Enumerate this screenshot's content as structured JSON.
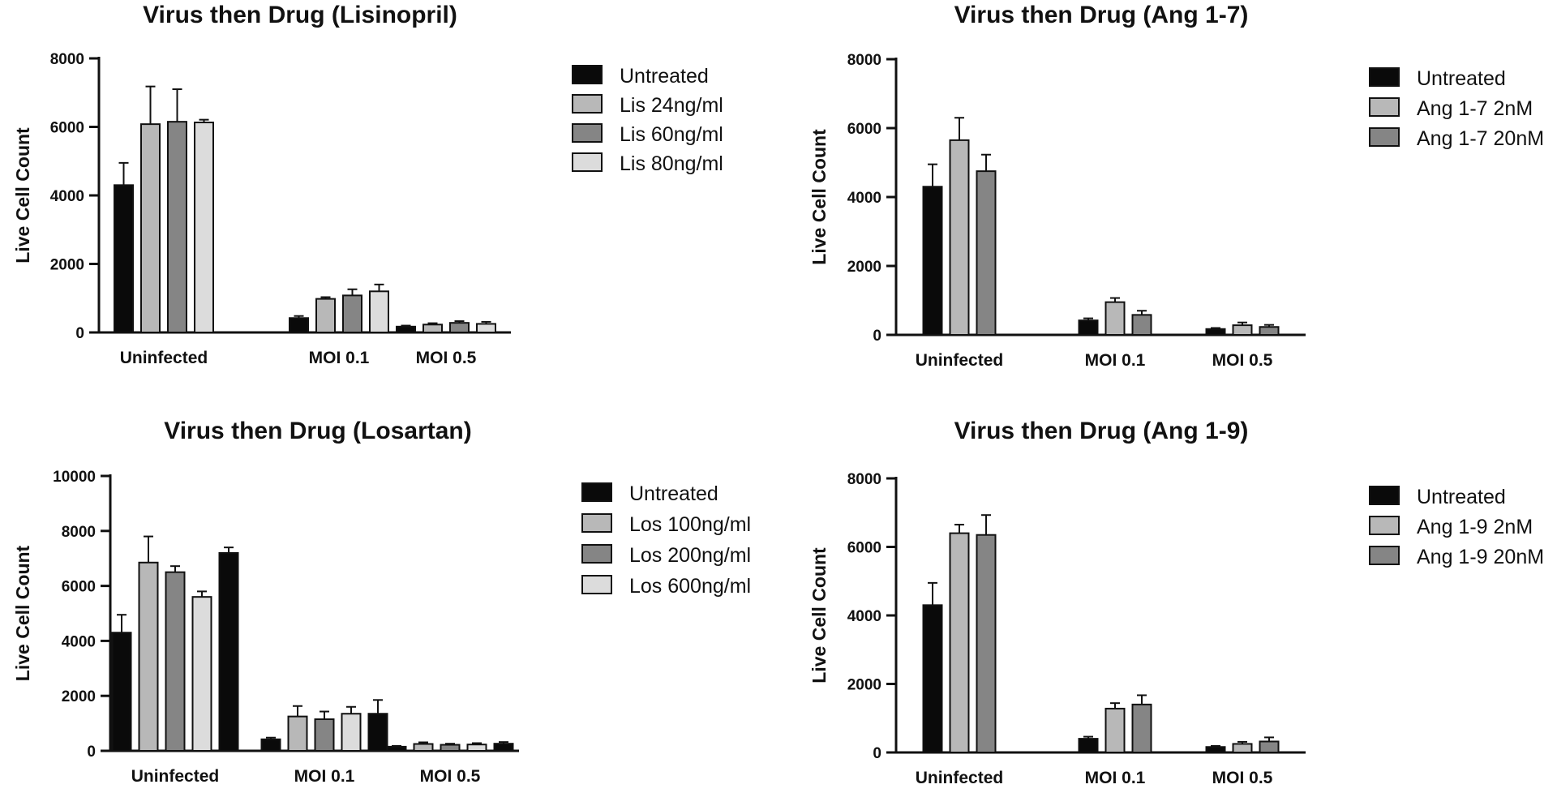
{
  "colors": {
    "untreated": "#0a0a0a",
    "light": "#b8b8b8",
    "mid": "#858585",
    "lightest": "#dcdcdc"
  },
  "chart_data": [
    {
      "type": "bar",
      "title": "Virus then Drug (Lisinopril)",
      "ylabel": "Live Cell Count",
      "ylim": [
        0,
        8000
      ],
      "yticks": [
        0,
        2000,
        4000,
        6000,
        8000
      ],
      "categories": [
        "Uninfected",
        "MOI 0.1",
        "MOI 0.5"
      ],
      "legend_position": "right",
      "series": [
        {
          "name": "Untreated",
          "color": "#0a0a0a",
          "values": [
            4300,
            420,
            170
          ],
          "errors": [
            650,
            60,
            30
          ]
        },
        {
          "name": "Lis 24ng/ml",
          "color": "#b8b8b8",
          "values": [
            6080,
            980,
            230
          ],
          "errors": [
            1100,
            50,
            40
          ]
        },
        {
          "name": "Lis 60ng/ml",
          "color": "#858585",
          "values": [
            6150,
            1080,
            280
          ],
          "errors": [
            950,
            180,
            50
          ]
        },
        {
          "name": "Lis 80ng/ml",
          "color": "#dcdcdc",
          "values": [
            6130,
            1200,
            250
          ],
          "errors": [
            80,
            200,
            60
          ]
        }
      ]
    },
    {
      "type": "bar",
      "title": "Virus then Drug (Ang 1-7)",
      "ylabel": "Live Cell Count",
      "ylim": [
        0,
        8000
      ],
      "yticks": [
        0,
        2000,
        4000,
        6000,
        8000
      ],
      "categories": [
        "Uninfected",
        "MOI 0.1",
        "MOI 0.5"
      ],
      "legend_position": "right",
      "series": [
        {
          "name": "Untreated",
          "color": "#0a0a0a",
          "values": [
            4300,
            420,
            170
          ],
          "errors": [
            650,
            60,
            30
          ]
        },
        {
          "name": "Ang 1-7 2nM",
          "color": "#b8b8b8",
          "values": [
            5650,
            950,
            280
          ],
          "errors": [
            650,
            120,
            80
          ]
        },
        {
          "name": "Ang 1-7 20nM",
          "color": "#858585",
          "values": [
            4750,
            580,
            230
          ],
          "errors": [
            480,
            120,
            60
          ]
        }
      ]
    },
    {
      "type": "bar",
      "title": "Virus then Drug (Losartan)",
      "ylabel": "Live Cell Count",
      "ylim": [
        0,
        10000
      ],
      "yticks": [
        0,
        2000,
        4000,
        6000,
        8000,
        10000
      ],
      "categories": [
        "Uninfected",
        "MOI 0.1",
        "MOI 0.5"
      ],
      "legend_position": "right",
      "series": [
        {
          "name": "Untreated",
          "color": "#0a0a0a",
          "values": [
            4300,
            420,
            150
          ],
          "errors": [
            650,
            60,
            30
          ]
        },
        {
          "name": "Los 100ng/ml",
          "color": "#b8b8b8",
          "values": [
            6850,
            1250,
            250
          ],
          "errors": [
            950,
            380,
            60
          ]
        },
        {
          "name": "Los 200ng/ml",
          "color": "#858585",
          "values": [
            6500,
            1150,
            220
          ],
          "errors": [
            220,
            280,
            40
          ]
        },
        {
          "name": "Los 600ng/ml",
          "color": "#dcdcdc",
          "values": [
            5600,
            1350,
            230
          ],
          "errors": [
            200,
            250,
            50
          ]
        },
        {
          "name": "",
          "color": "#0a0a0a",
          "values": [
            7200,
            1350,
            260
          ],
          "errors": [
            200,
            500,
            60
          ]
        }
      ]
    },
    {
      "type": "bar",
      "title": "Virus then Drug (Ang 1-9)",
      "ylabel": "Live Cell Count",
      "ylim": [
        0,
        8000
      ],
      "yticks": [
        0,
        2000,
        4000,
        6000,
        8000
      ],
      "categories": [
        "Uninfected",
        "MOI 0.1",
        "MOI 0.5"
      ],
      "legend_position": "right",
      "series": [
        {
          "name": "Untreated",
          "color": "#0a0a0a",
          "values": [
            4300,
            400,
            160
          ],
          "errors": [
            650,
            60,
            30
          ]
        },
        {
          "name": "Ang 1-9 2nM",
          "color": "#b8b8b8",
          "values": [
            6400,
            1280,
            250
          ],
          "errors": [
            250,
            160,
            60
          ]
        },
        {
          "name": "Ang 1-9 20nM",
          "color": "#858585",
          "values": [
            6350,
            1400,
            320
          ],
          "errors": [
            580,
            270,
            120
          ]
        }
      ]
    }
  ]
}
